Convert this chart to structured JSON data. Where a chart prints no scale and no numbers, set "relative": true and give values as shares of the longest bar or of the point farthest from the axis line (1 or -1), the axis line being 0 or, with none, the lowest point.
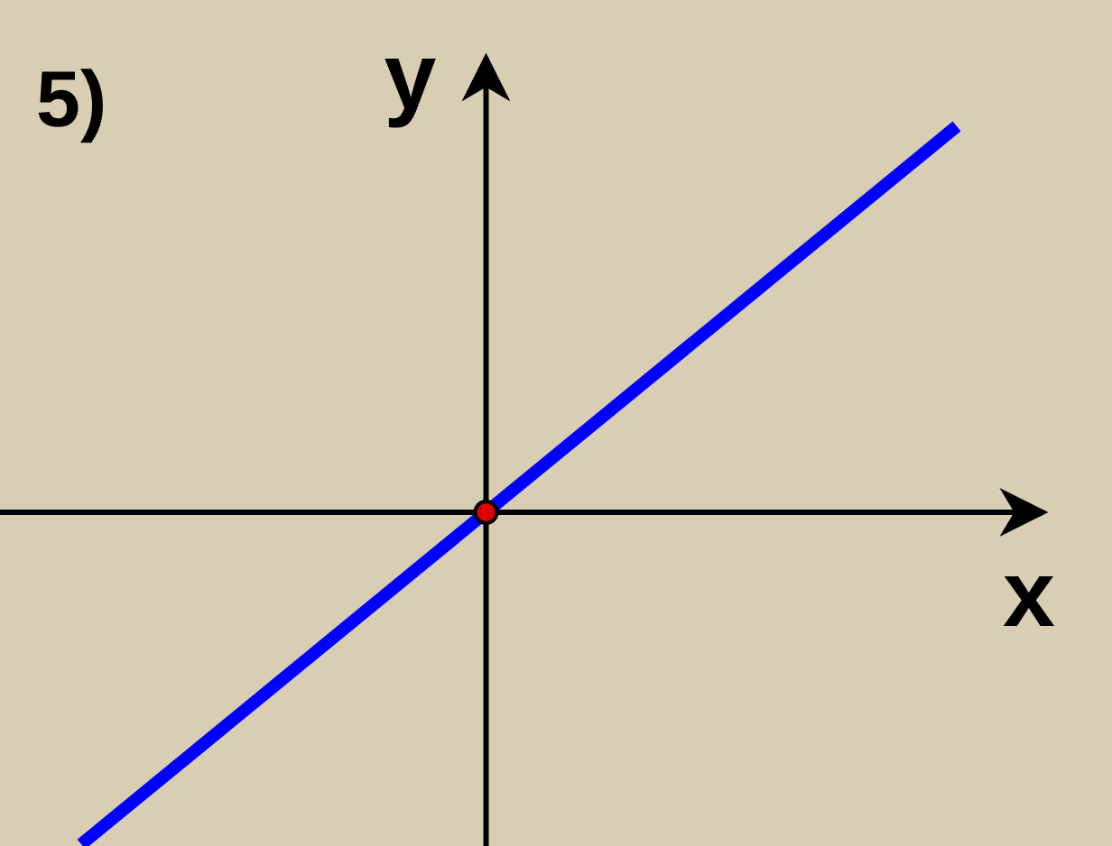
{
  "chart_data": {
    "type": "line",
    "title": "5)",
    "xlabel": "x",
    "ylabel": "y",
    "relative": true,
    "categories": [
      null,
      null
    ],
    "series": [
      {
        "color": "#0000ff",
        "values": [
          -0.86,
          1
        ]
      }
    ],
    "marker": "none",
    "line_style": "solid"
  }
}
